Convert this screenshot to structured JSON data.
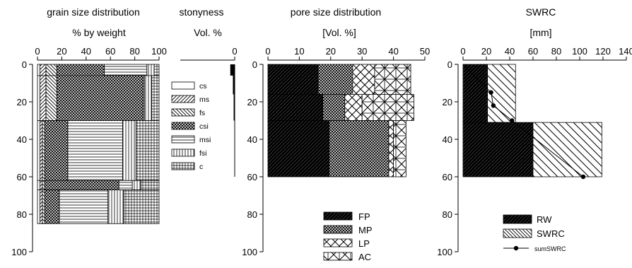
{
  "chart_data": [
    {
      "type": "bar",
      "orientation": "horizontal-stacked",
      "title": "grain size distribution",
      "xlabel": "% by weight",
      "ylabel": "",
      "xlim": [
        0,
        100
      ],
      "ylim": [
        100,
        0
      ],
      "xticks": [
        "0",
        "20",
        "40",
        "60",
        "80",
        "100"
      ],
      "yticks": [
        "0",
        "20",
        "40",
        "60",
        "80",
        "100"
      ],
      "legend_placement": "right",
      "layers": [
        {
          "top": 0,
          "bottom": 6,
          "values": [
            2,
            5,
            9,
            39,
            35,
            6,
            4
          ]
        },
        {
          "top": 6,
          "bottom": 30,
          "values": [
            2,
            5,
            9,
            71,
            1,
            6,
            6
          ]
        },
        {
          "top": 30,
          "bottom": 62,
          "values": [
            2,
            2,
            2,
            19,
            45,
            11,
            19
          ]
        },
        {
          "top": 62,
          "bottom": 67,
          "values": [
            2,
            2,
            2,
            61,
            11,
            7,
            15
          ]
        },
        {
          "top": 67,
          "bottom": 85,
          "values": [
            2,
            2,
            2,
            12,
            40,
            13,
            29
          ]
        }
      ],
      "series": [
        {
          "name": "cs",
          "pattern": "blank"
        },
        {
          "name": "ms",
          "pattern": "diag-right"
        },
        {
          "name": "fs",
          "pattern": "diag-left"
        },
        {
          "name": "csi",
          "pattern": "crosshatch-dense"
        },
        {
          "name": "msi",
          "pattern": "horizontal"
        },
        {
          "name": "fsi",
          "pattern": "vertical"
        },
        {
          "name": "c",
          "pattern": "grid"
        }
      ]
    },
    {
      "type": "bar",
      "orientation": "horizontal",
      "title": "stonyness",
      "xlabel": "Vol. %",
      "xlim": [
        0,
        50
      ],
      "xticks": [
        "0"
      ],
      "reversed": true,
      "layers": [
        {
          "top": 0,
          "bottom": 6,
          "value": 3.4
        },
        {
          "top": 6,
          "bottom": 16,
          "value": 1.4
        },
        {
          "top": 16,
          "bottom": 30,
          "value": 0.8
        },
        {
          "top": 30,
          "bottom": 60,
          "value": 0.2
        }
      ]
    },
    {
      "type": "bar",
      "orientation": "horizontal-stacked",
      "title": "pore size distribution",
      "xlabel": "[Vol. %]",
      "xlim": [
        0,
        50
      ],
      "ylim": [
        100,
        0
      ],
      "xticks": [
        "0",
        "10",
        "20",
        "30",
        "40",
        "50"
      ],
      "yticks": [
        "0",
        "20",
        "40",
        "60",
        "80",
        "100"
      ],
      "legend_placement": "bottom",
      "layers": [
        {
          "top": 0,
          "bottom": 16,
          "values": [
            16,
            11,
            7,
            11.5
          ]
        },
        {
          "top": 16,
          "bottom": 30,
          "values": [
            17.5,
            7,
            5.5,
            16.5
          ]
        },
        {
          "top": 30,
          "bottom": 60,
          "values": [
            19.5,
            19,
            1.5,
            4
          ]
        }
      ],
      "series": [
        {
          "name": "FP",
          "pattern": "solid-dark"
        },
        {
          "name": "MP",
          "pattern": "crosshatch-dense"
        },
        {
          "name": "LP",
          "pattern": "crosshatch-wide"
        },
        {
          "name": "AC",
          "pattern": "cross-box"
        }
      ]
    },
    {
      "type": "bar",
      "orientation": "horizontal-stacked",
      "title": "SWRC",
      "xlabel": "[mm]",
      "xlim": [
        0,
        140
      ],
      "ylim": [
        100,
        0
      ],
      "xticks": [
        "0",
        "20",
        "40",
        "60",
        "80",
        "100",
        "120",
        "140"
      ],
      "yticks": [
        "0",
        "20",
        "40",
        "60",
        "80",
        "100"
      ],
      "legend_placement": "bottom-right",
      "layers": [
        {
          "top": 0,
          "bottom": 31,
          "values": [
            21,
            24
          ]
        },
        {
          "top": 31,
          "bottom": 60,
          "values": [
            60,
            59
          ]
        }
      ],
      "series": [
        {
          "name": "RW",
          "pattern": "solid-dark"
        },
        {
          "name": "SWRC",
          "pattern": "diag-left"
        },
        {
          "name": "sumSWRC",
          "type": "line",
          "x": [
            0,
            24,
            26,
            42,
            103
          ],
          "y": [
            0,
            15,
            22,
            30,
            60
          ]
        }
      ]
    }
  ]
}
